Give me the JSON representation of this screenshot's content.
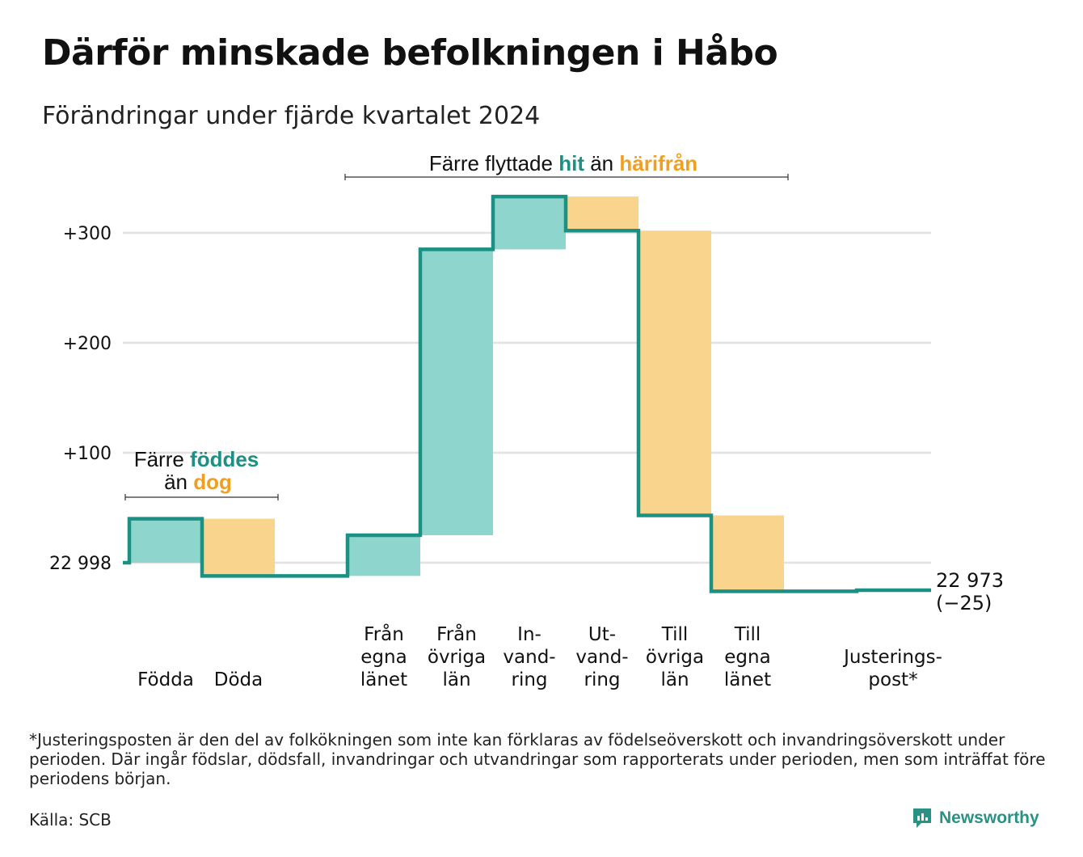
{
  "title": "Därför minskade befolkningen i Håbo",
  "subtitle": "Förändringar under fjärde kvartalet 2024",
  "colors": {
    "increase": "#8dd5cd",
    "decrease": "#f9d48c",
    "line": "#1a9183",
    "teal_text": "#1a9183",
    "orange_text": "#f0a020",
    "grid": "#e2e2e2"
  },
  "chart_data": {
    "type": "waterfall",
    "start_value": 22998,
    "end_value": 22973,
    "end_label": "22 973",
    "end_change_label": "(−25)",
    "y_baseline_label": "22 998",
    "y_ticks": [
      {
        "value": 0,
        "label": ""
      },
      {
        "value": 100,
        "label": "+100"
      },
      {
        "value": 200,
        "label": "+200"
      },
      {
        "value": 300,
        "label": "+300"
      }
    ],
    "ylim": [
      -50,
      360
    ],
    "grid": true,
    "steps": [
      {
        "label": [
          "Födda"
        ],
        "delta": 40,
        "kind": "increase"
      },
      {
        "label": [
          "Döda"
        ],
        "delta": -52,
        "kind": "decrease"
      },
      {
        "label": [],
        "delta": 0,
        "kind": "gap"
      },
      {
        "label": [
          "Från",
          "egna",
          "länet"
        ],
        "delta": 37,
        "kind": "increase"
      },
      {
        "label": [
          "Från",
          "övriga",
          "län"
        ],
        "delta": 260,
        "kind": "increase"
      },
      {
        "label": [
          "In-",
          "vand-",
          "ring"
        ],
        "delta": 48,
        "kind": "increase"
      },
      {
        "label": [
          "Ut-",
          "vand-",
          "ring"
        ],
        "delta": -31,
        "kind": "decrease"
      },
      {
        "label": [
          "Till",
          "övriga",
          "län"
        ],
        "delta": -259,
        "kind": "decrease"
      },
      {
        "label": [
          "Till",
          "egna",
          "länet"
        ],
        "delta": -69,
        "kind": "decrease"
      },
      {
        "label": [],
        "delta": 0,
        "kind": "gap"
      },
      {
        "label": [
          "Justerings-",
          "post*"
        ],
        "delta": 1,
        "kind": "increase"
      }
    ],
    "annotations": {
      "births": {
        "prefix": "Färre",
        "teal": "föddes",
        "middle": "än",
        "orange": "dog"
      },
      "moves": {
        "prefix": "Färre flyttade",
        "teal": "hit",
        "middle": "än",
        "orange": "härifrån"
      }
    }
  },
  "footnote": "*Justeringsposten är den del av folkökningen som inte kan förklaras av födelseöverskott och invandringsöverskott under perioden. Där ingår födslar, dödsfall, invandringar och utvandringar som rapporterats under perioden, men som inträffat före periodens början.",
  "source": "Källa: SCB",
  "brand": {
    "name": "Newsworthy",
    "icon": "newsworthy-logo-icon"
  }
}
